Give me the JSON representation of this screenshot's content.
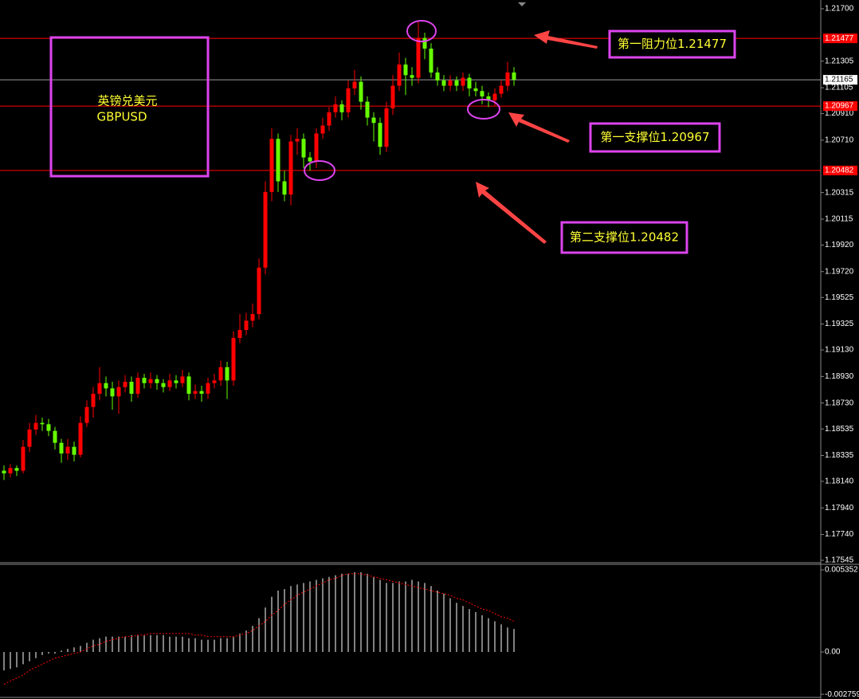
{
  "chart_data": [
    {
      "type": "candlestick",
      "symbol_name": "英镑兑美元",
      "symbol": "GBPUSD",
      "up_color": "#ff0000",
      "down_color": "#66ff00",
      "ylim": [
        1.17533,
        1.21766
      ],
      "yticks": [
        {
          "value": 1.217,
          "label": "1.21700"
        },
        1.21305,
        1.21105,
        {
          "value": 1.2091,
          "label": "1.20910"
        },
        {
          "value": 1.2071,
          "label": "1.20710"
        },
        1.20315,
        1.20115,
        {
          "value": 1.1992,
          "label": "1.19920"
        },
        {
          "value": 1.1972,
          "label": "1.19720"
        },
        1.19525,
        1.19325,
        {
          "value": 1.1913,
          "label": "1.19130"
        },
        {
          "value": 1.1893,
          "label": "1.18930"
        },
        {
          "value": 1.1873,
          "label": "1.18730"
        },
        1.18535,
        1.18335,
        {
          "value": 1.1814,
          "label": "1.18140"
        },
        {
          "value": 1.1794,
          "label": "1.17940"
        },
        {
          "value": 1.1774,
          "label": "1.17740"
        },
        1.17545
      ],
      "price_lines": [
        {
          "value": 1.21477,
          "color": "#ff0000"
        },
        {
          "value": 1.21165,
          "color": "#9a9a9a"
        },
        {
          "value": 1.20967,
          "color": "#ff0000"
        },
        {
          "value": 1.20482,
          "color": "#ff0000"
        }
      ],
      "annotations": [
        "第一阻力位1.21477",
        "第一支撑位1.20967",
        "第二支撑位1.20482"
      ],
      "candles": [
        [
          1.1822,
          1.1826,
          1.1815,
          1.182
        ],
        [
          1.182,
          1.1827,
          1.1817,
          1.1824
        ],
        [
          1.1824,
          1.1826,
          1.1818,
          1.1822
        ],
        [
          1.1822,
          1.1845,
          1.182,
          1.184
        ],
        [
          1.184,
          1.1858,
          1.1836,
          1.1853
        ],
        [
          1.1853,
          1.1864,
          1.1849,
          1.1858
        ],
        [
          1.1858,
          1.1862,
          1.1852,
          1.1857
        ],
        [
          1.1857,
          1.1861,
          1.1848,
          1.1852
        ],
        [
          1.1852,
          1.1855,
          1.1838,
          1.1843
        ],
        [
          1.1843,
          1.1846,
          1.1828,
          1.1835
        ],
        [
          1.1835,
          1.1846,
          1.183,
          1.184
        ],
        [
          1.184,
          1.1844,
          1.1829,
          1.1834
        ],
        [
          1.1834,
          1.1863,
          1.1832,
          1.1858
        ],
        [
          1.1858,
          1.1875,
          1.1855,
          1.187
        ],
        [
          1.187,
          1.1885,
          1.1862,
          1.188
        ],
        [
          1.188,
          1.19,
          1.1875,
          1.1888
        ],
        [
          1.1888,
          1.1893,
          1.1878,
          1.1884
        ],
        [
          1.1884,
          1.1889,
          1.1868,
          1.1878
        ],
        [
          1.1878,
          1.189,
          1.1865,
          1.1885
        ],
        [
          1.1885,
          1.1894,
          1.1881,
          1.1889
        ],
        [
          1.1889,
          1.1893,
          1.1874,
          1.188
        ],
        [
          1.188,
          1.1896,
          1.1877,
          1.1892
        ],
        [
          1.1892,
          1.1895,
          1.1884,
          1.1888
        ],
        [
          1.1888,
          1.1896,
          1.1884,
          1.1891
        ],
        [
          1.1891,
          1.1894,
          1.1883,
          1.1888
        ],
        [
          1.1888,
          1.1891,
          1.1881,
          1.1885
        ],
        [
          1.1885,
          1.1895,
          1.1882,
          1.189
        ],
        [
          1.189,
          1.1894,
          1.1884,
          1.1888
        ],
        [
          1.1888,
          1.1898,
          1.1885,
          1.1893
        ],
        [
          1.1893,
          1.1896,
          1.1875,
          1.188
        ],
        [
          1.188,
          1.1887,
          1.1876,
          1.1882
        ],
        [
          1.1882,
          1.1886,
          1.1874,
          1.188
        ],
        [
          1.188,
          1.1892,
          1.1876,
          1.1888
        ],
        [
          1.1888,
          1.1895,
          1.1884,
          1.189
        ],
        [
          1.189,
          1.1905,
          1.1886,
          1.19
        ],
        [
          1.19,
          1.1904,
          1.1876,
          1.189
        ],
        [
          1.189,
          1.1927,
          1.1886,
          1.1922
        ],
        [
          1.1922,
          1.194,
          1.1918,
          1.1928
        ],
        [
          1.1928,
          1.1941,
          1.1924,
          1.1935
        ],
        [
          1.1935,
          1.1948,
          1.193,
          1.194
        ],
        [
          1.194,
          1.1982,
          1.1936,
          1.1975
        ],
        [
          1.1975,
          1.204,
          1.197,
          1.2032
        ],
        [
          1.2032,
          1.208,
          1.2025,
          1.2072
        ],
        [
          1.2072,
          1.2076,
          1.2032,
          1.204
        ],
        [
          1.204,
          1.2048,
          1.2025,
          1.203
        ],
        [
          1.203,
          1.2075,
          1.2022,
          1.207
        ],
        [
          1.207,
          1.208,
          1.206,
          1.2072
        ],
        [
          1.2072,
          1.2076,
          1.205,
          1.2058
        ],
        [
          1.2058,
          1.2062,
          1.2048,
          1.2055
        ],
        [
          1.2055,
          1.208,
          1.205,
          1.2076
        ],
        [
          1.2076,
          1.2088,
          1.2072,
          1.2082
        ],
        [
          1.2082,
          1.2096,
          1.2078,
          1.2092
        ],
        [
          1.2092,
          1.2104,
          1.2088,
          1.2098
        ],
        [
          1.2098,
          1.2101,
          1.2086,
          1.2092
        ],
        [
          1.2092,
          1.2116,
          1.2088,
          1.211
        ],
        [
          1.211,
          1.2124,
          1.2105,
          1.2115
        ],
        [
          1.2115,
          1.2119,
          1.2094,
          1.21
        ],
        [
          1.21,
          1.2104,
          1.2082,
          1.2088
        ],
        [
          1.2088,
          1.2092,
          1.207,
          1.2084
        ],
        [
          1.2084,
          1.2088,
          1.206,
          1.2066
        ],
        [
          1.2066,
          1.21,
          1.2062,
          1.2095
        ],
        [
          1.2095,
          1.212,
          1.209,
          1.2112
        ],
        [
          1.2112,
          1.2137,
          1.2108,
          1.2128
        ],
        [
          1.2128,
          1.2133,
          1.2105,
          1.212
        ],
        [
          1.212,
          1.2126,
          1.2112,
          1.2118
        ],
        [
          1.2118,
          1.216,
          1.2114,
          1.2148
        ],
        [
          1.2148,
          1.2152,
          1.2132,
          1.214
        ],
        [
          1.214,
          1.2144,
          1.2118,
          1.2122
        ],
        [
          1.2122,
          1.2126,
          1.2112,
          1.2116
        ],
        [
          1.2116,
          1.212,
          1.2108,
          1.2112
        ],
        [
          1.2112,
          1.212,
          1.2108,
          1.2116
        ],
        [
          1.2116,
          1.2119,
          1.2108,
          1.2112
        ],
        [
          1.2112,
          1.2122,
          1.2108,
          1.2118
        ],
        [
          1.2118,
          1.2121,
          1.2104,
          1.211
        ],
        [
          1.211,
          1.2115,
          1.2104,
          1.2108
        ],
        [
          1.2108,
          1.2112,
          1.2098,
          1.2104
        ],
        [
          1.2104,
          1.2107,
          1.2096,
          1.2101
        ],
        [
          1.2101,
          1.211,
          1.2097,
          1.2106
        ],
        [
          1.2106,
          1.2116,
          1.2103,
          1.2112
        ],
        [
          1.2112,
          1.213,
          1.2108,
          1.2122
        ],
        [
          1.2122,
          1.2126,
          1.2112,
          1.21165
        ]
      ]
    },
    {
      "type": "macd",
      "ylim": [
        -0.00296,
        0.005716
      ],
      "yticks": [
        0.005352,
        {
          "value": 0,
          "label": "0.00"
        },
        -0.002759
      ],
      "histogram": {
        "color": "#ffffff",
        "values": [
          -0.0012,
          -0.0011,
          -0.001,
          -0.0008,
          -0.0006,
          -0.0004,
          -0.0002,
          -0.0001,
          -0.0001,
          0.0001,
          0.0002,
          0.0003,
          0.0004,
          0.0006,
          0.0008,
          0.0009,
          0.001,
          0.001,
          0.001,
          0.001,
          0.0011,
          0.0011,
          0.0011,
          0.0011,
          0.0011,
          0.0011,
          0.001,
          0.001,
          0.001,
          0.0009,
          0.0009,
          0.0008,
          0.0008,
          0.0008,
          0.0009,
          0.0009,
          0.001,
          0.0012,
          0.0014,
          0.0017,
          0.0022,
          0.0029,
          0.0036,
          0.004,
          0.0041,
          0.0043,
          0.0044,
          0.0045,
          0.0046,
          0.0047,
          0.0048,
          0.0049,
          0.005,
          0.0051,
          0.0051,
          0.0052,
          0.0052,
          0.0051,
          0.0049,
          0.0047,
          0.0045,
          0.0045,
          0.0046,
          0.0046,
          0.0047,
          0.0046,
          0.0045,
          0.0043,
          0.004,
          0.0038,
          0.0035,
          0.0032,
          0.003,
          0.0028,
          0.0026,
          0.0024,
          0.0022,
          0.002,
          0.0018,
          0.0016,
          0.0015
        ]
      },
      "signal": {
        "color": "#ff0000",
        "values": [
          -0.0021,
          -0.0019,
          -0.0017,
          -0.0015,
          -0.0012,
          -0.001,
          -0.0008,
          -0.0006,
          -0.0004,
          -0.0003,
          -0.0002,
          -0.0001,
          0,
          0.0002,
          0.0004,
          0.0005,
          0.0007,
          0.0008,
          0.0009,
          0.001,
          0.001,
          0.0011,
          0.0011,
          0.0012,
          0.0012,
          0.0012,
          0.0012,
          0.0012,
          0.0012,
          0.0012,
          0.0011,
          0.0011,
          0.001,
          0.001,
          0.001,
          0.001,
          0.001,
          0.0011,
          0.0012,
          0.0014,
          0.0017,
          0.002,
          0.0024,
          0.0027,
          0.0031,
          0.0034,
          0.0037,
          0.0039,
          0.0041,
          0.0043,
          0.0045,
          0.0047,
          0.0048,
          0.005,
          0.0051,
          0.0051,
          0.0051,
          0.005,
          0.0049,
          0.0048,
          0.0047,
          0.0046,
          0.0045,
          0.0044,
          0.0043,
          0.0042,
          0.0041,
          0.004,
          0.0039,
          0.0038,
          0.0037,
          0.0035,
          0.0034,
          0.0032,
          0.003,
          0.0028,
          0.0027,
          0.0025,
          0.0023,
          0.0022,
          0.002
        ]
      }
    }
  ]
}
